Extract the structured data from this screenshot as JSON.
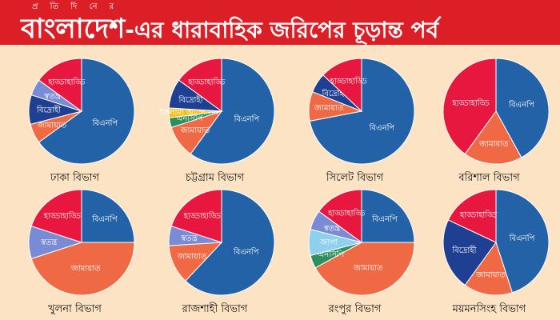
{
  "header": {
    "brand_top": "প্র তি দি নে র",
    "brand": "বাংলাদেশ",
    "title_rest": "-এর ধারাবাহিক জরিপের চূড়ান্ত পর্ব"
  },
  "colors": {
    "banner": "#dc1f26",
    "background": "#fbe3c4",
    "BNP": "#2462a8",
    "Jamaat": "#ef6a44",
    "Hadda": "#e8173f",
    "Swatantra": "#7a8bd6",
    "Bidrohi": "#1f3f93",
    "NCP": "#2e8f5e",
    "Other": "#f2c01a",
    "JaGa": "#8fd0ee"
  },
  "chart_data": [
    {
      "type": "pie",
      "caption": "ঢাকা বিভাগ",
      "slices": [
        {
          "label": "বিএনপি",
          "value": 65,
          "color": "#2462a8"
        },
        {
          "label": "জামায়াত",
          "value": 6,
          "color": "#ef6a44"
        },
        {
          "label": "বিদ্রোহী",
          "value": 9,
          "color": "#1f3f93"
        },
        {
          "label": "স্বতন্ত্র",
          "value": 5,
          "color": "#7a8bd6"
        },
        {
          "label": "হাড্ডাহাড্ডি",
          "value": 15,
          "color": "#e8173f"
        }
      ]
    },
    {
      "type": "pie",
      "caption": "চট্টগ্রাম বিভাগ",
      "slices": [
        {
          "label": "বিএনপি",
          "value": 60,
          "color": "#2462a8"
        },
        {
          "label": "জামায়াত",
          "value": 10,
          "color": "#ef6a44"
        },
        {
          "label": "এনসিপি",
          "value": 3,
          "color": "#2e8f5e"
        },
        {
          "label": "ইসলামী আন্দোলন",
          "value": 3,
          "color": "#f2c01a"
        },
        {
          "label": "বিদ্রোহী",
          "value": 9,
          "color": "#1f3f93"
        },
        {
          "label": "হাড্ডাহাড্ডি",
          "value": 15,
          "color": "#e8173f"
        }
      ]
    },
    {
      "type": "pie",
      "caption": "সিলেট বিভাগ",
      "slices": [
        {
          "label": "বিএনপি",
          "value": 72,
          "color": "#2462a8"
        },
        {
          "label": "জামায়াত",
          "value": 9,
          "color": "#ef6a44"
        },
        {
          "label": "বিদ্রোহী",
          "value": 6,
          "color": "#1f3f93"
        },
        {
          "label": "হাড্ডাহাড্ডি",
          "value": 13,
          "color": "#e8173f"
        }
      ]
    },
    {
      "type": "pie",
      "caption": "বরিশাল বিভাগ",
      "slices": [
        {
          "label": "বিএনপি",
          "value": 42,
          "color": "#2462a8"
        },
        {
          "label": "জামায়াত",
          "value": 18,
          "color": "#ef6a44"
        },
        {
          "label": "হাড্ডাহাড্ডি",
          "value": 40,
          "color": "#e8173f"
        }
      ]
    },
    {
      "type": "pie",
      "caption": "খুলনা বিভাগ",
      "slices": [
        {
          "label": "বিএনপি",
          "value": 25,
          "color": "#2462a8"
        },
        {
          "label": "জামায়াত",
          "value": 45,
          "color": "#ef6a44"
        },
        {
          "label": "স্বতন্ত্র",
          "value": 10,
          "color": "#7a8bd6"
        },
        {
          "label": "হাড্ডাহাড্ডি",
          "value": 20,
          "color": "#e8173f"
        }
      ]
    },
    {
      "type": "pie",
      "caption": "রাজশাহী বিভাগ",
      "slices": [
        {
          "label": "বিএনপি",
          "value": 62,
          "color": "#2462a8"
        },
        {
          "label": "জামায়াত",
          "value": 12,
          "color": "#ef6a44"
        },
        {
          "label": "স্বতন্ত্র",
          "value": 6,
          "color": "#7a8bd6"
        },
        {
          "label": "হাড্ডাহাড্ডি",
          "value": 20,
          "color": "#e8173f"
        }
      ]
    },
    {
      "type": "pie",
      "caption": "রংপুর বিভাগ",
      "slices": [
        {
          "label": "বিএনপি",
          "value": 25,
          "color": "#2462a8"
        },
        {
          "label": "জামায়াত",
          "value": 42,
          "color": "#ef6a44"
        },
        {
          "label": "এনসিপি",
          "value": 4,
          "color": "#2e8f5e"
        },
        {
          "label": "জাগা",
          "value": 8,
          "color": "#8fd0ee"
        },
        {
          "label": "স্বতন্ত্র",
          "value": 6,
          "color": "#7a8bd6"
        },
        {
          "label": "হাড্ডাহাড্ডি",
          "value": 15,
          "color": "#e8173f"
        }
      ]
    },
    {
      "type": "pie",
      "caption": "ময়মনসিংহ বিভাগ",
      "slices": [
        {
          "label": "বিএনপি",
          "value": 45,
          "color": "#2462a8"
        },
        {
          "label": "জামায়াত",
          "value": 15,
          "color": "#ef6a44"
        },
        {
          "label": "বিদ্রোহী",
          "value": 22,
          "color": "#1f3f93"
        },
        {
          "label": "হাড্ডাহাড্ডি",
          "value": 18,
          "color": "#e8173f"
        }
      ]
    }
  ]
}
